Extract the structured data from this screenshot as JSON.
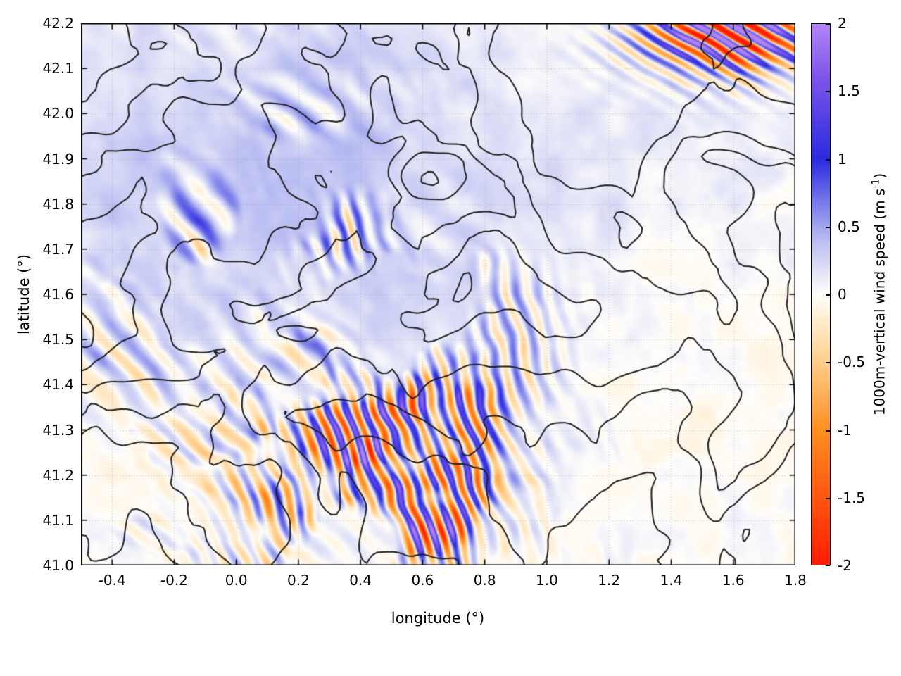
{
  "figure": {
    "background": "#ffffff"
  },
  "chart_data": {
    "type": "heatmap",
    "title": "",
    "xlabel": "longitude (°)",
    "ylabel": "latitude (°)",
    "xlim": [
      -0.5,
      1.8
    ],
    "ylim": [
      41.0,
      42.2
    ],
    "x_ticks": [
      -0.4,
      -0.2,
      0.0,
      0.2,
      0.4,
      0.6,
      0.8,
      1.0,
      1.2,
      1.4,
      1.6,
      1.8
    ],
    "x_tick_labels": [
      "-0.4",
      "-0.2",
      "0.0",
      "0.2",
      "0.4",
      "0.6",
      "0.8",
      "1.0",
      "1.2",
      "1.4",
      "1.6",
      "1.8"
    ],
    "y_ticks": [
      41.0,
      41.1,
      41.2,
      41.3,
      41.4,
      41.5,
      41.6,
      41.7,
      41.8,
      41.9,
      42.0,
      42.1,
      42.2
    ],
    "y_tick_labels": [
      "41.0",
      "41.1",
      "41.2",
      "41.3",
      "41.4",
      "41.5",
      "41.6",
      "41.7",
      "41.8",
      "41.9",
      "42.0",
      "42.1",
      "42.2"
    ],
    "grid": true,
    "overlay_contours": "black terrain elevation contour lines over the shaded field",
    "field_description": "1000 m vertical wind speed; blue streaks = updrafts, orange = downdrafts; strongest mountain-wave banding around 0.2–0.7 deg E / 41.0–41.5 deg N, diagonal wave trains on the west side, and a strong patch in the NE corner; most of the domain near 0",
    "colorbar": {
      "label_prefix": "1000m-vertical wind speed (m s",
      "label_sup": "-1",
      "label_suffix": ")",
      "range": [
        -2,
        2
      ],
      "ticks": [
        -2,
        -1.5,
        -1,
        -0.5,
        0,
        0.5,
        1,
        1.5,
        2
      ],
      "tick_labels": [
        "-2",
        "-1.5",
        "-1",
        "-0.5",
        "0",
        "0.5",
        "1",
        "1.5",
        "2"
      ],
      "palette": [
        {
          "value": -2.0,
          "color": "#ff1c00"
        },
        {
          "value": -1.0,
          "color": "#ff9020"
        },
        {
          "value": -0.4,
          "color": "#ffd9a0"
        },
        {
          "value": 0.0,
          "color": "#fffefb"
        },
        {
          "value": 0.4,
          "color": "#b9bdf2"
        },
        {
          "value": 1.0,
          "color": "#2a2ae0"
        },
        {
          "value": 1.6,
          "color": "#7d55ea"
        },
        {
          "value": 2.0,
          "color": "#b184f5"
        }
      ]
    },
    "style": {
      "contour_color": "#1f1f1f",
      "grid_color": "rgba(140,140,140,0.55)",
      "border_color": "#000000"
    }
  }
}
